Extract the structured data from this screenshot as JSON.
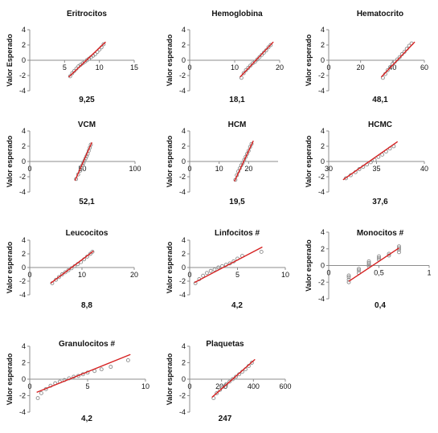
{
  "chart_data": [
    {
      "type": "scatter",
      "title": "Eritrocitos",
      "value_label": "9,25",
      "ylabel": "Valor Esperado",
      "xlim": [
        0,
        15
      ],
      "ylim": [
        -4,
        4
      ],
      "xticks": [
        "5",
        "10",
        "15"
      ],
      "yticks": [
        "-4",
        "-2",
        "0",
        "2",
        "4"
      ],
      "fit_line": {
        "x": [
          5.6,
          10.9
        ],
        "y": [
          -2.2,
          2.4
        ]
      },
      "points_x": [
        5.8,
        6.1,
        6.4,
        6.7,
        7.0,
        7.3,
        7.6,
        7.9,
        8.2,
        8.5,
        8.8,
        9.1,
        9.4,
        9.7,
        10.0,
        10.3,
        10.6
      ],
      "points_y": [
        -2.1,
        -1.7,
        -1.4,
        -1.1,
        -0.8,
        -0.6,
        -0.4,
        -0.2,
        0.0,
        0.2,
        0.4,
        0.6,
        0.8,
        1.1,
        1.4,
        1.7,
        2.1
      ]
    },
    {
      "type": "scatter",
      "title": "Hemoglobina",
      "value_label": "18,1",
      "ylabel": "Valor esperado",
      "xlim": [
        0,
        20
      ],
      "ylim": [
        -4,
        4
      ],
      "xticks": [
        "0",
        "10",
        "20"
      ],
      "yticks": [
        "-4",
        "-2",
        "0",
        "2",
        "4"
      ],
      "fit_line": {
        "x": [
          11.2,
          18.6
        ],
        "y": [
          -2.2,
          2.4
        ]
      },
      "points_x": [
        11.5,
        12.0,
        12.5,
        13.0,
        13.5,
        14.0,
        14.5,
        15.0,
        15.5,
        16.0,
        16.5,
        17.0,
        17.5,
        18.0
      ],
      "points_y": [
        -2.3,
        -1.7,
        -1.3,
        -1.0,
        -0.7,
        -0.4,
        -0.2,
        0.1,
        0.4,
        0.7,
        1.0,
        1.3,
        1.7,
        2.0
      ]
    },
    {
      "type": "scatter",
      "title": "Hematocrito",
      "value_label": "48,1",
      "ylabel": "Valor esperado",
      "xlim": [
        0,
        60
      ],
      "ylim": [
        -4,
        4
      ],
      "xticks": [
        "0",
        "20",
        "40",
        "60"
      ],
      "yticks": [
        "-4",
        "-2",
        "0",
        "2",
        "4"
      ],
      "fit_line": {
        "x": [
          33,
          54
        ],
        "y": [
          -2.2,
          2.4
        ]
      },
      "points_x": [
        34,
        35.5,
        37,
        38.5,
        40,
        41.5,
        43,
        44.5,
        46,
        47.5,
        49,
        50.5,
        52
      ],
      "points_y": [
        -2.3,
        -1.8,
        -1.3,
        -0.9,
        -0.5,
        -0.2,
        0.1,
        0.4,
        0.8,
        1.1,
        1.5,
        1.9,
        2.2
      ]
    },
    {
      "type": "scatter",
      "title": "VCM",
      "value_label": "52,1",
      "ylabel": "Valor esperado",
      "xlim": [
        0,
        100
      ],
      "ylim": [
        -4,
        4
      ],
      "xticks": [
        "0",
        "50",
        "100"
      ],
      "yticks": [
        "-4",
        "-2",
        "0",
        "2",
        "4"
      ],
      "fit_line": {
        "x": [
          43,
          59
        ],
        "y": [
          -2.5,
          2.5
        ]
      },
      "points_x": [
        44,
        46,
        48,
        49,
        50,
        51,
        52,
        53,
        54,
        55,
        56,
        57,
        58
      ],
      "points_y": [
        -2.3,
        -1.7,
        -1.2,
        -0.8,
        -0.5,
        -0.2,
        0.1,
        0.4,
        0.7,
        1.0,
        1.4,
        1.8,
        2.2
      ]
    },
    {
      "type": "scatter",
      "title": "HCM",
      "value_label": "19,5",
      "ylabel": "Valor esperado",
      "xlim": [
        0,
        30
      ],
      "ylim": [
        -4,
        4
      ],
      "xticks": [
        "0",
        "10",
        "20"
      ],
      "yticks": [
        "-4",
        "-2",
        "0",
        "2",
        "4"
      ],
      "fit_line": {
        "x": [
          15.2,
          21.6
        ],
        "y": [
          -2.6,
          2.7
        ]
      },
      "points_x": [
        15.5,
        16.0,
        16.5,
        17.0,
        17.5,
        18.0,
        18.5,
        19.0,
        19.5,
        20.0,
        20.5,
        21.0
      ],
      "points_y": [
        -2.4,
        -1.8,
        -1.3,
        -0.9,
        -0.5,
        -0.2,
        0.2,
        0.6,
        1.0,
        1.4,
        1.9,
        2.3
      ]
    },
    {
      "type": "scatter",
      "title": "HCMC",
      "value_label": "37,6",
      "ylabel": "Valor esperado",
      "xlim": [
        30,
        40
      ],
      "ylim": [
        -4,
        4
      ],
      "xticks": [
        "30",
        "35",
        "40"
      ],
      "yticks": [
        "-4",
        "-2",
        "0",
        "2",
        "4"
      ],
      "fit_line": {
        "x": [
          31.5,
          37.2
        ],
        "y": [
          -2.4,
          2.6
        ]
      },
      "points_x": [
        31.8,
        32.3,
        32.8,
        33.2,
        33.6,
        34.0,
        34.4,
        34.8,
        35.2,
        35.6,
        36.0,
        36.4,
        36.8
      ],
      "points_y": [
        -2.2,
        -1.8,
        -1.4,
        -1.0,
        -0.7,
        -0.4,
        -0.1,
        0.2,
        0.6,
        0.9,
        1.3,
        1.7,
        2.0
      ]
    },
    {
      "type": "scatter",
      "title": "Leucocitos",
      "value_label": "8,8",
      "ylabel": "Valor esperado",
      "xlim": [
        0,
        20
      ],
      "ylim": [
        -4,
        4
      ],
      "xticks": [
        "0",
        "10",
        "20"
      ],
      "yticks": [
        "-4",
        "-2",
        "0",
        "2",
        "4"
      ],
      "fit_line": {
        "x": [
          4.0,
          12.2
        ],
        "y": [
          -2.3,
          2.4
        ]
      },
      "points_x": [
        4.3,
        5.0,
        5.6,
        6.2,
        6.8,
        7.4,
        8.0,
        8.6,
        9.2,
        9.8,
        10.4,
        11.0,
        11.6,
        12.0
      ],
      "points_y": [
        -2.3,
        -1.8,
        -1.4,
        -1.0,
        -0.7,
        -0.4,
        -0.1,
        0.2,
        0.5,
        0.8,
        1.2,
        1.6,
        2.0,
        2.3
      ]
    },
    {
      "type": "scatter",
      "title": "Linfocitos #",
      "value_label": "4,2",
      "ylabel": "Valor esperado",
      "xlim": [
        0,
        10
      ],
      "ylim": [
        -4,
        4
      ],
      "xticks": [
        "0",
        "5",
        "10"
      ],
      "yticks": [
        "-4",
        "-2",
        "0",
        "2",
        "4"
      ],
      "fit_line": {
        "x": [
          0.5,
          7.6
        ],
        "y": [
          -2.2,
          3.0
        ]
      },
      "points_x": [
        0.6,
        1.0,
        1.4,
        1.8,
        2.2,
        2.6,
        3.0,
        3.4,
        3.8,
        4.2,
        4.6,
        5.0,
        5.5,
        7.5
      ],
      "points_y": [
        -2.3,
        -1.7,
        -1.2,
        -0.8,
        -0.5,
        -0.3,
        0.0,
        0.2,
        0.4,
        0.6,
        0.9,
        1.3,
        1.7,
        2.3
      ]
    },
    {
      "type": "scatter",
      "title": "Monocitos #",
      "value_label": "0,4",
      "ylabel": "Valor esperado",
      "xlim": [
        0,
        1
      ],
      "ylim": [
        -4,
        4
      ],
      "xticks": [
        "0",
        "0,5",
        "1"
      ],
      "yticks": [
        "-4",
        "-2",
        "0",
        "2",
        "4"
      ],
      "fit_line": {
        "x": [
          0.2,
          0.7
        ],
        "y": [
          -1.9,
          2.1
        ]
      },
      "points_x": [
        0.2,
        0.2,
        0.2,
        0.2,
        0.3,
        0.3,
        0.3,
        0.4,
        0.4,
        0.4,
        0.4,
        0.5,
        0.5,
        0.5,
        0.6,
        0.6,
        0.7,
        0.7,
        0.7,
        0.7
      ],
      "points_y": [
        -2.0,
        -1.7,
        -1.4,
        -1.2,
        -0.9,
        -0.6,
        -0.4,
        -0.1,
        0.1,
        0.3,
        0.5,
        0.7,
        0.9,
        1.1,
        1.2,
        1.4,
        1.6,
        1.9,
        2.1,
        2.3
      ]
    },
    {
      "type": "scatter",
      "title": "Granulocitos #",
      "value_label": "4,2",
      "ylabel": "Valor esperado",
      "xlim": [
        0,
        10
      ],
      "ylim": [
        -4,
        4
      ],
      "xticks": [
        "0",
        "5",
        "10"
      ],
      "yticks": [
        "-4",
        "-2",
        "0",
        "2",
        "4"
      ],
      "fit_line": {
        "x": [
          0.6,
          8.7
        ],
        "y": [
          -1.6,
          3.0
        ]
      },
      "points_x": [
        0.7,
        1.0,
        1.4,
        1.8,
        2.2,
        2.6,
        3.0,
        3.4,
        3.8,
        4.2,
        4.6,
        5.0,
        5.6,
        6.2,
        7.0,
        8.5
      ],
      "points_y": [
        -2.3,
        -1.7,
        -1.2,
        -0.8,
        -0.5,
        -0.3,
        -0.1,
        0.1,
        0.3,
        0.4,
        0.6,
        0.8,
        1.0,
        1.2,
        1.5,
        2.3
      ]
    },
    {
      "type": "scatter",
      "title": "Plaquetas",
      "value_label": "247",
      "ylabel": "Valor esperado",
      "xlim": [
        0,
        600
      ],
      "ylim": [
        -4,
        4
      ],
      "xticks": [
        "0",
        "200",
        "400",
        "600"
      ],
      "yticks": [
        "-4",
        "-2",
        "0",
        "2",
        "4"
      ],
      "fit_line": {
        "x": [
          140,
          410
        ],
        "y": [
          -2.2,
          2.4
        ]
      },
      "points_x": [
        150,
        170,
        190,
        210,
        230,
        250,
        270,
        290,
        310,
        330,
        350,
        370,
        390
      ],
      "points_y": [
        -2.3,
        -1.7,
        -1.3,
        -0.9,
        -0.6,
        -0.3,
        0.0,
        0.3,
        0.6,
        0.9,
        1.2,
        1.6,
        2.0
      ]
    }
  ],
  "colors": {
    "points": "#8c8c8c",
    "fit_line": "#d62020",
    "axis": "#8c8c8c"
  }
}
